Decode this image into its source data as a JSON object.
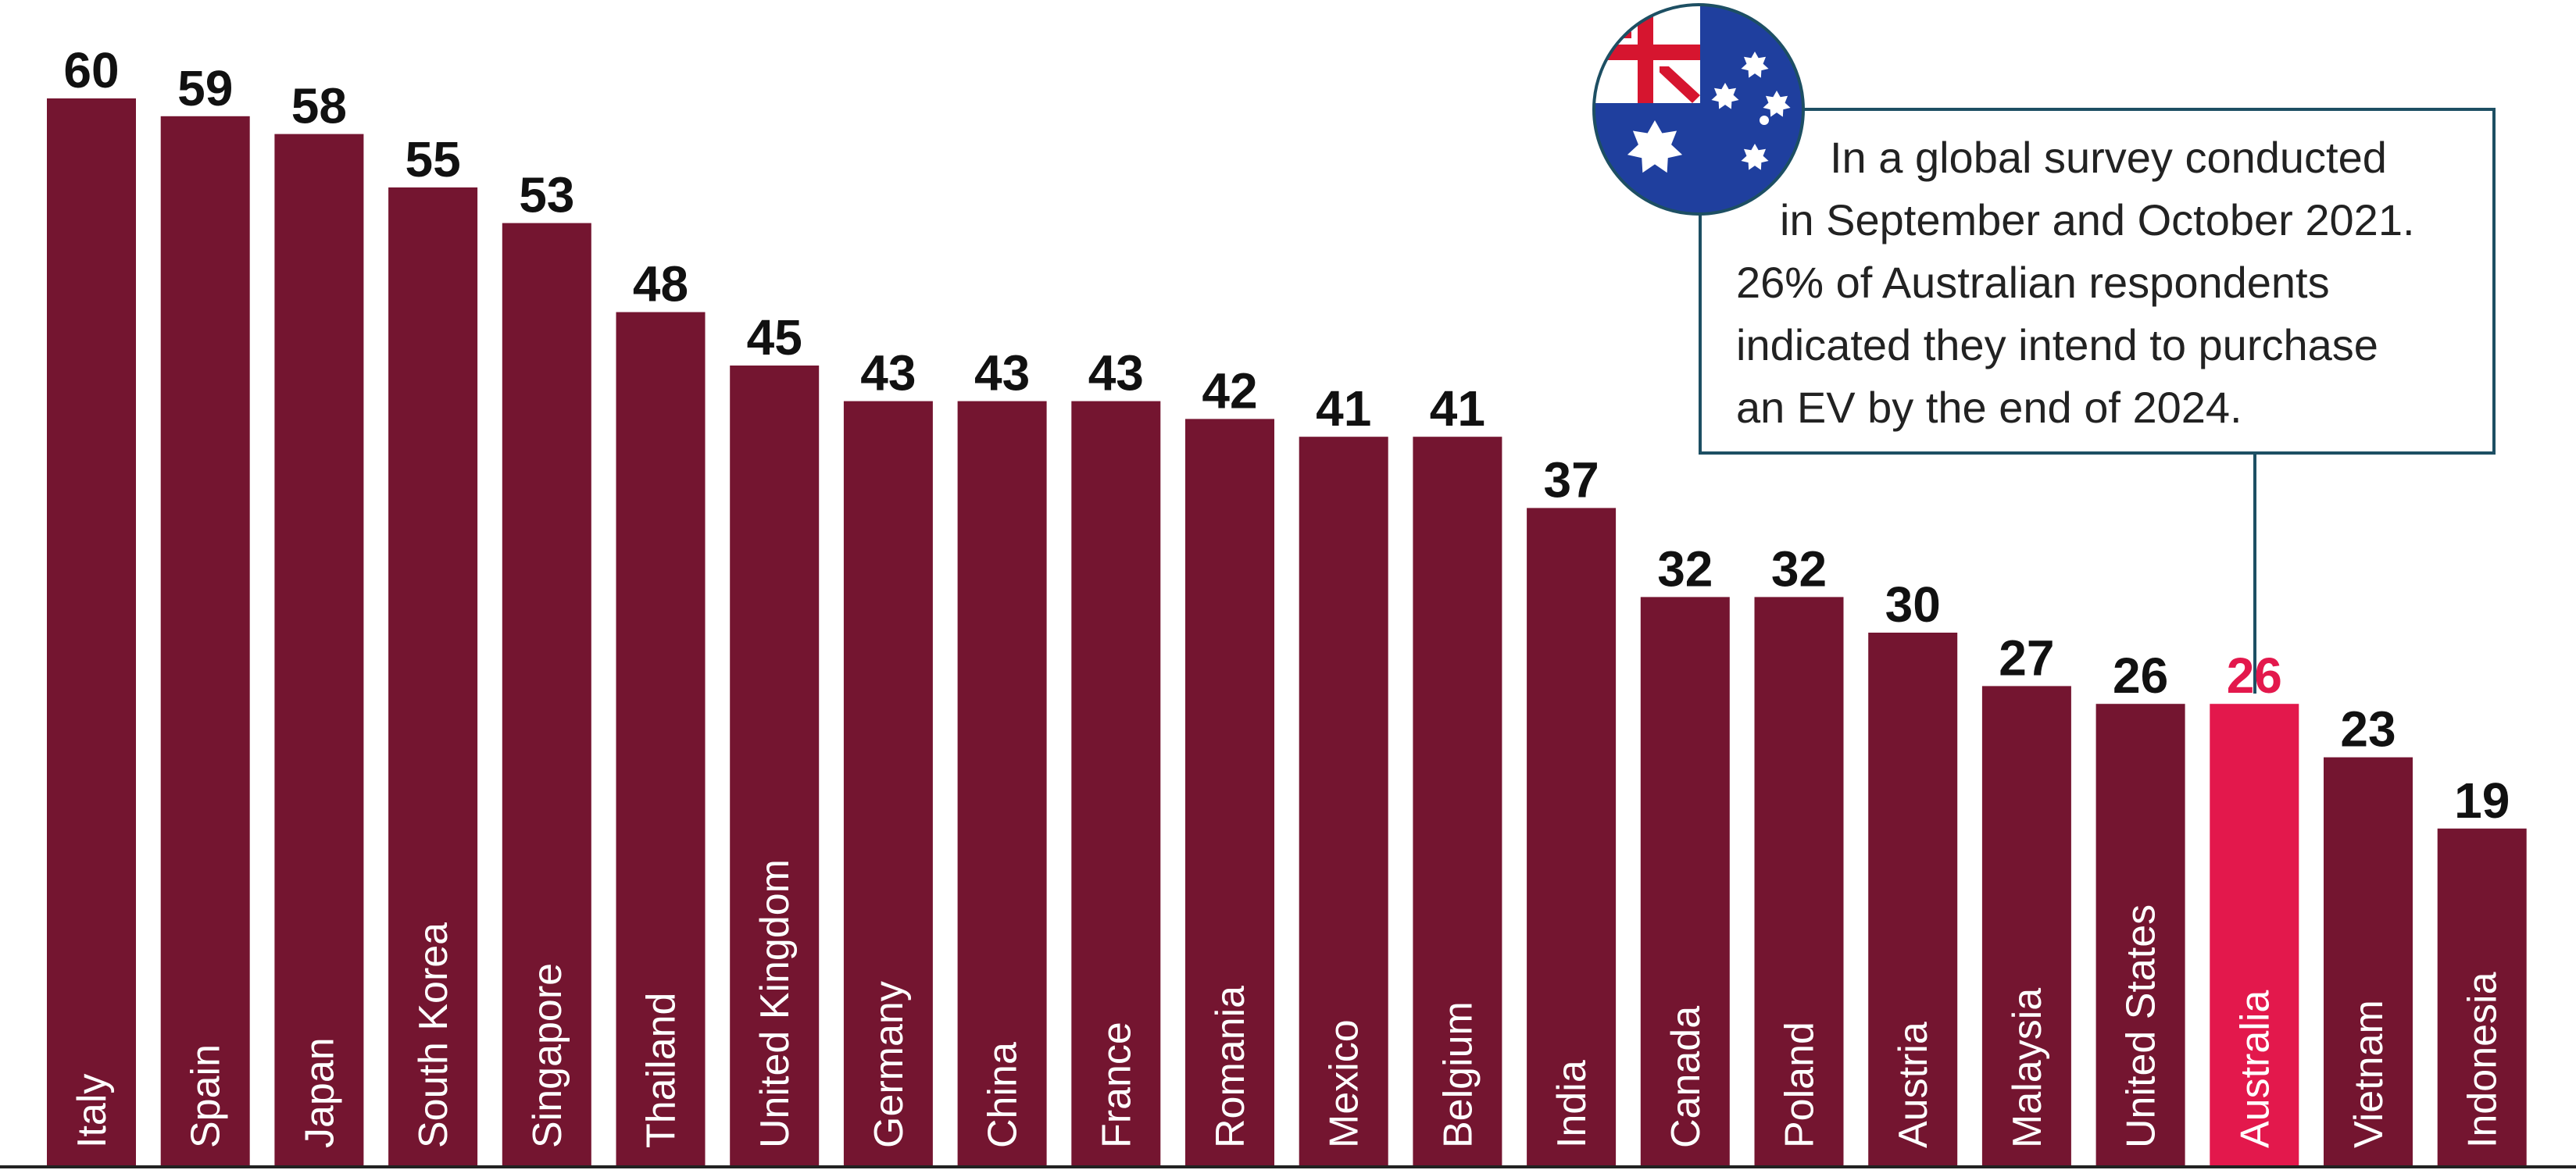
{
  "chart_data": {
    "type": "bar",
    "categories": [
      "Italy",
      "Spain",
      "Japan",
      "South Korea",
      "Singapore",
      "Thailand",
      "United Kingdom",
      "Germany",
      "China",
      "France",
      "Romania",
      "Mexico",
      "Belgium",
      "India",
      "Canada",
      "Poland",
      "Austria",
      "Malaysia",
      "United States",
      "Australia",
      "Vietnam",
      "Indonesia"
    ],
    "values": [
      60,
      59,
      58,
      55,
      53,
      48,
      45,
      43,
      43,
      43,
      42,
      41,
      41,
      37,
      32,
      32,
      30,
      27,
      26,
      26,
      23,
      19
    ],
    "value_labels": [
      "60",
      "59",
      "58",
      "55",
      "53",
      "48",
      "45",
      "43",
      "43",
      "43",
      "42",
      "41",
      "41",
      "37",
      "32",
      "32",
      "30",
      "27",
      "26",
      "26",
      "23",
      "19"
    ],
    "highlight": "Australia",
    "ylim": [
      0,
      62
    ],
    "grid": false,
    "colors": {
      "bar": "#741530",
      "highlight": "#e3184c",
      "label": "#111111",
      "highlight_label": "#e3184c"
    }
  },
  "callout": {
    "lines": [
      "In a global survey conducted",
      "in September and October 2021.",
      "26% of Australian respondents",
      "indicated they intend to purchase",
      "an EV by the end of 2024."
    ],
    "icon": "australia-flag-icon",
    "border_color": "#1d4f63"
  }
}
